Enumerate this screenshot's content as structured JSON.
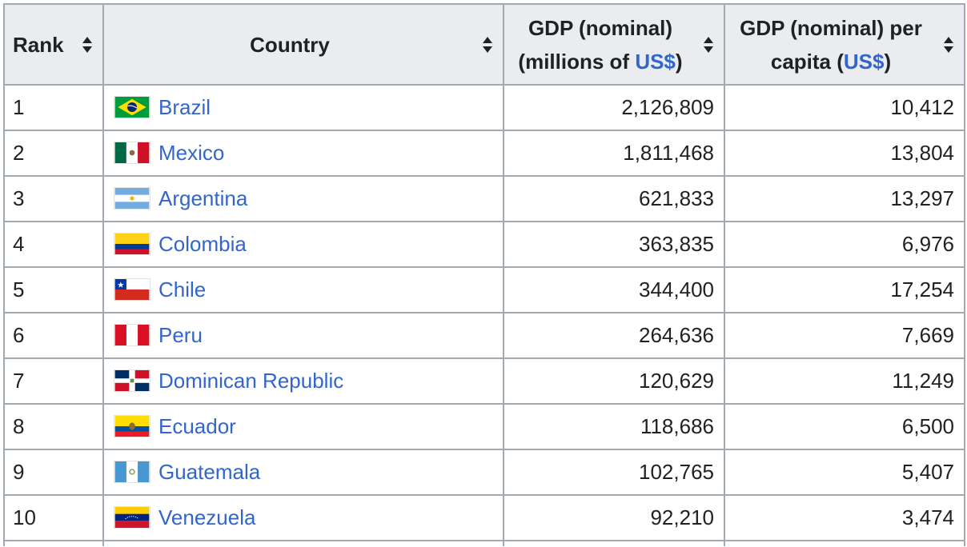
{
  "table": {
    "headers": {
      "rank": "Rank",
      "country": "Country",
      "gdp_prefix": "GDP (nominal) (millions of ",
      "gdp_currency": "US$",
      "gdp_suffix": ")",
      "per_capita_prefix": "GDP (nominal) per capita (",
      "per_capita_currency": "US$",
      "per_capita_suffix": ")"
    },
    "rows": [
      {
        "rank": "1",
        "country": "Brazil",
        "flag": "brazil-flag-icon",
        "gdp": "2,126,809",
        "per_capita": "10,412"
      },
      {
        "rank": "2",
        "country": "Mexico",
        "flag": "mexico-flag-icon",
        "gdp": "1,811,468",
        "per_capita": "13,804"
      },
      {
        "rank": "3",
        "country": "Argentina",
        "flag": "argentina-flag-icon",
        "gdp": "621,833",
        "per_capita": "13,297"
      },
      {
        "rank": "4",
        "country": "Colombia",
        "flag": "colombia-flag-icon",
        "gdp": "363,835",
        "per_capita": "6,976"
      },
      {
        "rank": "5",
        "country": "Chile",
        "flag": "chile-flag-icon",
        "gdp": "344,400",
        "per_capita": "17,254"
      },
      {
        "rank": "6",
        "country": "Peru",
        "flag": "peru-flag-icon",
        "gdp": "264,636",
        "per_capita": "7,669"
      },
      {
        "rank": "7",
        "country": "Dominican Republic",
        "flag": "dominican-republic-flag-icon",
        "gdp": "120,629",
        "per_capita": "11,249"
      },
      {
        "rank": "8",
        "country": "Ecuador",
        "flag": "ecuador-flag-icon",
        "gdp": "118,686",
        "per_capita": "6,500"
      },
      {
        "rank": "9",
        "country": "Guatemala",
        "flag": "guatemala-flag-icon",
        "gdp": "102,765",
        "per_capita": "5,407"
      },
      {
        "rank": "10",
        "country": "Venezuela",
        "flag": "venezuela-flag-icon",
        "gdp": "92,210",
        "per_capita": "3,474"
      }
    ]
  },
  "colors": {
    "link": "#3366cc",
    "header_bg": "#eaecf0",
    "border": "#a2a9b1",
    "text": "#202122"
  }
}
